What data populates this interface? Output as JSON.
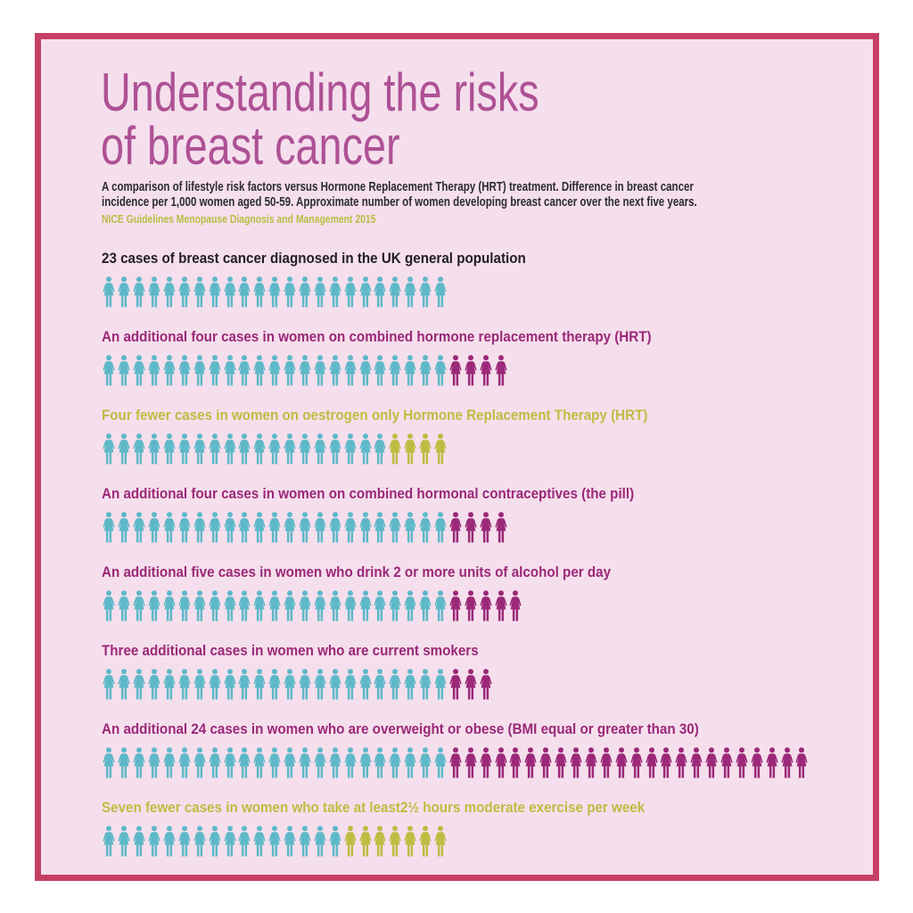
{
  "header": {
    "title_lines": [
      "Understanding the risks",
      "of breast cancer"
    ],
    "subtitle_lines": [
      "A comparison of lifestyle risk factors versus Hormone Replacement Therapy (HRT) treatment. Difference in breast cancer",
      "incidence per 1,000 women aged 50-59. Approximate number of women developing breast cancer over the next five years."
    ],
    "source": "NICE Guidelines Menopause Diagnosis and Management 2015"
  },
  "colors": {
    "border": "#c63f64",
    "background": "#f5dfed",
    "title": "#ae5195",
    "baseline": "#5db8c8",
    "increase": "#9b2878",
    "decrease": "#bcbd41",
    "baseline_label": "#231f20"
  },
  "rows": [
    {
      "label": "23 cases of breast cancer diagnosed in the UK general population",
      "label_color": "baseline_label",
      "baseline": 23,
      "extra": 0,
      "fewer": 0
    },
    {
      "label": "An additional four cases in women on combined hormone replacement therapy (HRT)",
      "label_color": "increase",
      "baseline": 23,
      "extra": 4,
      "fewer": 0
    },
    {
      "label": "Four fewer  cases in women on oestrogen only Hormone Replacement Therapy (HRT)",
      "label_color": "decrease",
      "baseline": 19,
      "extra": 0,
      "fewer": 4
    },
    {
      "label": "An additional four cases in women on combined hormonal contraceptives (the pill)",
      "label_color": "increase",
      "baseline": 23,
      "extra": 4,
      "fewer": 0
    },
    {
      "label": "An additional five cases in women who drink 2 or more units of alcohol per day",
      "label_color": "increase",
      "baseline": 23,
      "extra": 5,
      "fewer": 0
    },
    {
      "label": "Three additional cases in women who are current smokers",
      "label_color": "increase",
      "baseline": 23,
      "extra": 3,
      "fewer": 0
    },
    {
      "label": "An additional 24 cases in women who are overweight or obese (BMI equal or greater than 30)",
      "label_color": "increase",
      "baseline": 23,
      "extra": 24,
      "fewer": 0
    },
    {
      "label": "Seven fewer cases in women who take at least2½ hours moderate exercise per week",
      "label_color": "decrease",
      "baseline": 16,
      "extra": 0,
      "fewer": 7
    }
  ],
  "chart_data": {
    "type": "pictogram",
    "title": "Understanding the risks of breast cancer",
    "subtitle": "Breast cancer incidence per 1,000 women aged 50-59 over the next five years",
    "unit": "cases per 1,000 women",
    "categories": [
      "UK general population",
      "Combined HRT",
      "Oestrogen only HRT",
      "Combined hormonal contraceptives (the pill)",
      "Alcohol 2+ units per day",
      "Current smokers",
      "Overweight or obese (BMI >= 30)",
      "At least 2½ hours moderate exercise per week"
    ],
    "series": [
      {
        "name": "Baseline cases",
        "values": [
          23,
          23,
          19,
          23,
          23,
          23,
          23,
          16
        ]
      },
      {
        "name": "Additional cases",
        "values": [
          0,
          4,
          0,
          4,
          5,
          3,
          24,
          0
        ]
      },
      {
        "name": "Fewer cases",
        "values": [
          0,
          0,
          4,
          0,
          0,
          0,
          0,
          7
        ]
      }
    ],
    "difference_vs_baseline": [
      0,
      4,
      -4,
      4,
      5,
      3,
      24,
      -7
    ],
    "totals": [
      23,
      27,
      19,
      27,
      28,
      26,
      47,
      16
    ]
  }
}
